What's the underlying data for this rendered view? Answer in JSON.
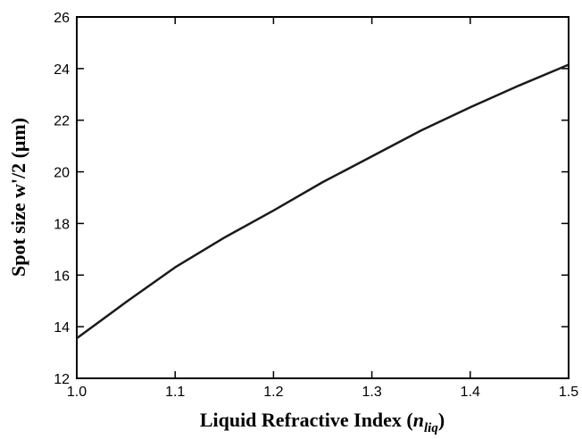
{
  "chart_data": {
    "type": "line",
    "xlabel": {
      "parts": [
        "Liquid Refractive Index (",
        "n",
        "liq",
        ")"
      ]
    },
    "ylabel": "Spot size w'/2 (μm)",
    "x": [
      1.0,
      1.05,
      1.1,
      1.15,
      1.2,
      1.25,
      1.3,
      1.35,
      1.4,
      1.45,
      1.5
    ],
    "series": [
      {
        "color": "#1a1a1a",
        "values": [
          13.55,
          14.95,
          16.3,
          17.45,
          18.5,
          19.6,
          20.6,
          21.6,
          22.5,
          23.35,
          24.15
        ]
      }
    ],
    "xlim": [
      1.0,
      1.5
    ],
    "xticks": [
      {
        "value": 1.0,
        "label": "1.0"
      },
      1.1,
      1.2,
      1.3,
      1.4,
      1.5
    ],
    "ylim": [
      12,
      26
    ],
    "yticks": [
      12,
      14,
      16,
      18,
      20,
      22,
      24,
      26
    ]
  }
}
